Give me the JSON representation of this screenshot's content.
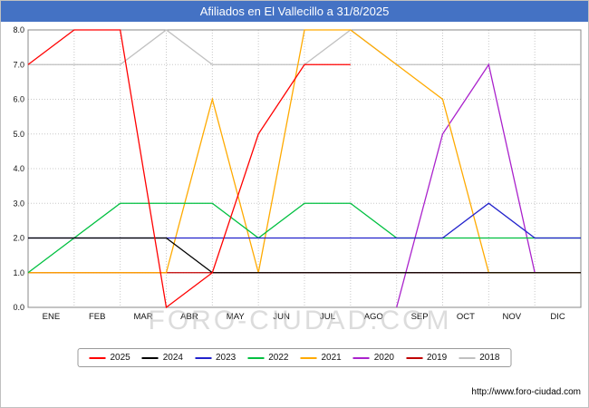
{
  "title_bar": {
    "bg_color": "#4472c4",
    "text_color": "#ffffff"
  },
  "watermark": "FORO-CIUDAD.COM",
  "footer": {
    "url": "http://www.foro-ciudad.com"
  },
  "chart_data": {
    "type": "line",
    "title": "Afiliados en El Vallecillo a 31/8/2025",
    "categories": [
      "ENE",
      "FEB",
      "MAR",
      "ABR",
      "MAY",
      "JUN",
      "JUL",
      "AGO",
      "SEP",
      "OCT",
      "NOV",
      "DIC"
    ],
    "ylim": [
      0,
      8
    ],
    "ytick_labels": [
      "0.0",
      "1.0",
      "2.0",
      "3.0",
      "4.0",
      "5.0",
      "6.0",
      "7.0",
      "8.0"
    ],
    "grid": true,
    "legend_position": "bottom",
    "series": [
      {
        "name": "2025",
        "color": "#ff0000",
        "values": [
          7,
          8,
          8,
          0,
          1,
          5,
          7,
          7,
          null,
          null,
          null,
          null
        ]
      },
      {
        "name": "2024",
        "color": "#000000",
        "values": [
          2,
          2,
          2,
          2,
          1,
          1,
          1,
          1,
          1,
          1,
          1,
          1
        ]
      },
      {
        "name": "2023",
        "color": "#2222cc",
        "values": [
          2,
          2,
          2,
          2,
          2,
          2,
          2,
          2,
          2,
          2,
          3,
          2
        ]
      },
      {
        "name": "2022",
        "color": "#00c040",
        "values": [
          1,
          2,
          3,
          3,
          3,
          2,
          3,
          3,
          2,
          2,
          2,
          2
        ]
      },
      {
        "name": "2021",
        "color": "#ffaa00",
        "values": [
          1,
          1,
          1,
          1,
          6,
          1,
          8,
          8,
          7,
          6,
          1,
          1
        ]
      },
      {
        "name": "2020",
        "color": "#aa22cc",
        "values": [
          null,
          null,
          null,
          null,
          null,
          null,
          null,
          null,
          0,
          5,
          7,
          1
        ]
      },
      {
        "name": "2019",
        "color": "#c00000",
        "values": [
          1,
          1,
          1,
          1,
          1,
          1,
          1,
          1,
          1,
          1,
          1,
          1
        ]
      },
      {
        "name": "2018",
        "color": "#c0c0c0",
        "values": [
          7,
          7,
          7,
          8,
          7,
          7,
          7,
          8,
          7,
          7,
          7,
          7
        ]
      }
    ]
  }
}
